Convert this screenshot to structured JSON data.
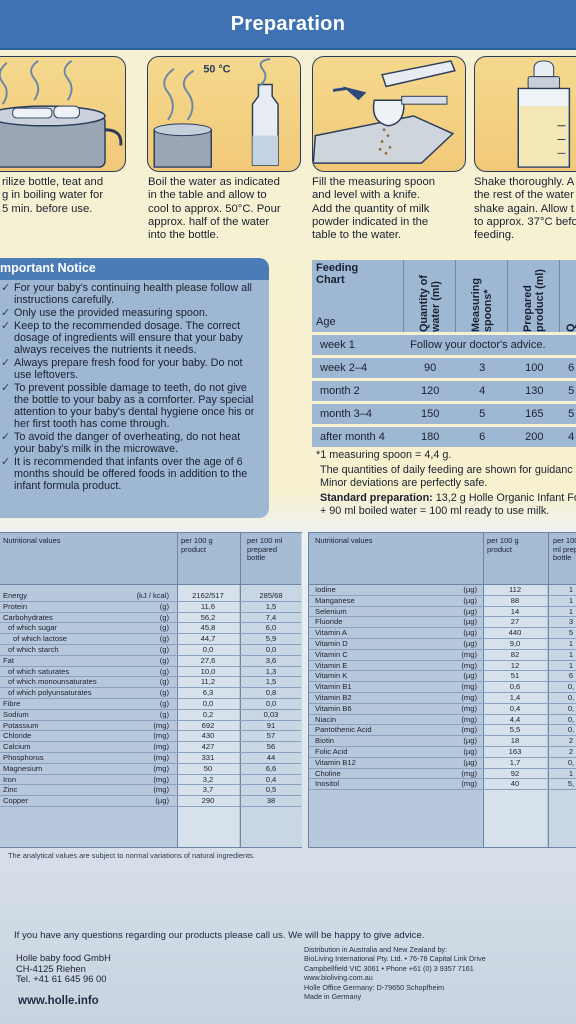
{
  "header": {
    "title": "Preparation"
  },
  "steps": [
    {
      "lines": [
        "rilize bottle, teat and",
        "g in boiling water for",
        "5 min. before use."
      ]
    },
    {
      "temp": "50 °C",
      "lines": [
        "Boil the water as indicated",
        "in the table and allow to",
        "cool to approx. 50°C. Pour",
        "approx. half of the water",
        "into the bottle."
      ]
    },
    {
      "lines": [
        "Fill the measuring spoon",
        "and level with a knife.",
        "Add the quantity of milk",
        "powder indicated in the",
        "table to the water."
      ]
    },
    {
      "lines": [
        "Shake thoroughly. A",
        "the rest of the water",
        "shake again. Allow t",
        "to approx. 37°C befo",
        "feeding."
      ]
    }
  ],
  "notice": {
    "title": "mportant Notice",
    "items": [
      "For your baby's continuing health please follow all instructions carefully.",
      "Only use the provided measuring spoon.",
      "Keep to the recommended dosage. The correct dosage of ingredients will ensure that your baby always receives the nutrients it needs.",
      "Always prepare fresh food for your baby. Do not use leftovers.",
      "To prevent possible damage to teeth, do not give the bottle to your baby as a comforter. Pay special attention to your baby's dental hygiene once his or her first tooth has come through.",
      "To avoid the danger of overheating, do not heat your baby's milk in the microwave.",
      "It is recommended that infants over the age of 6 months should be offered foods in addition to the infant formula product."
    ]
  },
  "feeding_chart": {
    "title_line1": "Feeding",
    "title_line2": "Chart",
    "age_label": "Age",
    "col_water": "Quantity of water (ml)",
    "col_spoons": "Measuring spoons*",
    "col_product": "Prepared product (ml)",
    "col_extra": "Q",
    "rows": [
      {
        "age": "week 1",
        "advice": "Follow your doctor's advice."
      },
      {
        "age": "week 2–4",
        "water": "90",
        "spoons": "3",
        "product": "100",
        "extra": "6"
      },
      {
        "age": "month 2",
        "water": "120",
        "spoons": "4",
        "product": "130",
        "extra": "5"
      },
      {
        "age": "month 3–4",
        "water": "150",
        "spoons": "5",
        "product": "165",
        "extra": "5"
      },
      {
        "age": "after month 4",
        "water": "180",
        "spoons": "6",
        "product": "200",
        "extra": "4"
      }
    ],
    "spoon_note": "*1 measuring spoon = 4,4 g.",
    "quantities_note_1": "The quantities of daily feeding are shown for guidanc",
    "quantities_note_2": "Minor deviations are perfectly safe.",
    "standard_label": "Standard preparation:",
    "standard_text_1": " 13,2 g Holle Organic Infant For",
    "standard_text_2": "+ 90 ml boiled water = 100 ml ready to use milk."
  },
  "nutrition_left": {
    "header_label": "Nutritional values",
    "col1": "per 100 g product",
    "col2": "per 100 ml prepared bottle",
    "rows": [
      {
        "name": "Energy",
        "unit": "(kJ / kcal)",
        "v1": "2162/517",
        "v2": "285/68"
      },
      {
        "name": "Protein",
        "unit": "(g)",
        "v1": "11,6",
        "v2": "1,5"
      },
      {
        "name": "Carbohydrates",
        "unit": "(g)",
        "v1": "56,2",
        "v2": "7,4"
      },
      {
        "name": "of which sugar",
        "unit": "(g)",
        "v1": "45,8",
        "v2": "6,0",
        "indent": 1
      },
      {
        "name": "of which lactose",
        "unit": "(g)",
        "v1": "44,7",
        "v2": "5,9",
        "indent": 2
      },
      {
        "name": "of which starch",
        "unit": "(g)",
        "v1": "0,0",
        "v2": "0,0",
        "indent": 1
      },
      {
        "name": "Fat",
        "unit": "(g)",
        "v1": "27,6",
        "v2": "3,6"
      },
      {
        "name": "of which saturates",
        "unit": "(g)",
        "v1": "10,0",
        "v2": "1,3",
        "indent": 1
      },
      {
        "name": "of which monounsaturates",
        "unit": "(g)",
        "v1": "11,2",
        "v2": "1,5",
        "indent": 1
      },
      {
        "name": "of which polyunsaturates",
        "unit": "(g)",
        "v1": "6,3",
        "v2": "0,8",
        "indent": 1
      },
      {
        "name": "Fibre",
        "unit": "(g)",
        "v1": "0,0",
        "v2": "0,0"
      },
      {
        "name": "Sodium",
        "unit": "(g)",
        "v1": "0,2",
        "v2": "0,03"
      },
      {
        "name": "Potassium",
        "unit": "(mg)",
        "v1": "692",
        "v2": "91"
      },
      {
        "name": "Chloride",
        "unit": "(mg)",
        "v1": "430",
        "v2": "57"
      },
      {
        "name": "Calcium",
        "unit": "(mg)",
        "v1": "427",
        "v2": "56"
      },
      {
        "name": "Phosphorus",
        "unit": "(mg)",
        "v1": "331",
        "v2": "44"
      },
      {
        "name": "Magnesium",
        "unit": "(mg)",
        "v1": "50",
        "v2": "6,6"
      },
      {
        "name": "Iron",
        "unit": "(mg)",
        "v1": "3,2",
        "v2": "0,4"
      },
      {
        "name": "Zinc",
        "unit": "(mg)",
        "v1": "3,7",
        "v2": "0,5"
      },
      {
        "name": "Copper",
        "unit": "(µg)",
        "v1": "290",
        "v2": "38"
      }
    ]
  },
  "nutrition_right": {
    "header_label": "Nutritional values",
    "col1": "per 100 g product",
    "col2": "per 100 ml prepa bottle",
    "rows": [
      {
        "name": "Iodine",
        "unit": "(µg)",
        "v1": "112",
        "v2": "1"
      },
      {
        "name": "Manganese",
        "unit": "(µg)",
        "v1": "88",
        "v2": "1"
      },
      {
        "name": "Selenium",
        "unit": "(µg)",
        "v1": "14",
        "v2": "1"
      },
      {
        "name": "Fluoride",
        "unit": "(µg)",
        "v1": "27",
        "v2": "3"
      },
      {
        "name": "Vitamin A",
        "unit": "(µg)",
        "v1": "440",
        "v2": "5"
      },
      {
        "name": "Vitamin D",
        "unit": "(µg)",
        "v1": "9,0",
        "v2": "1"
      },
      {
        "name": "Vitamin C",
        "unit": "(mg)",
        "v1": "82",
        "v2": "1"
      },
      {
        "name": "Vitamin E",
        "unit": "(mg)",
        "v1": "12",
        "v2": "1"
      },
      {
        "name": "Vitamin K",
        "unit": "(µg)",
        "v1": "51",
        "v2": "6"
      },
      {
        "name": "Vitamin B1",
        "unit": "(mg)",
        "v1": "0,6",
        "v2": "0,"
      },
      {
        "name": "Vitamin B2",
        "unit": "(mg)",
        "v1": "1,4",
        "v2": "0,"
      },
      {
        "name": "Vitamin B6",
        "unit": "(mg)",
        "v1": "0,4",
        "v2": "0,"
      },
      {
        "name": "Niacin",
        "unit": "(mg)",
        "v1": "4,4",
        "v2": "0,"
      },
      {
        "name": "Pantothenic Acid",
        "unit": "(mg)",
        "v1": "5,5",
        "v2": "0,"
      },
      {
        "name": "Biotin",
        "unit": "(µg)",
        "v1": "18",
        "v2": "2"
      },
      {
        "name": "Folic Acid",
        "unit": "(µg)",
        "v1": "163",
        "v2": "2"
      },
      {
        "name": "Vitamin B12",
        "unit": "(µg)",
        "v1": "1,7",
        "v2": "0,"
      },
      {
        "name": "Choline",
        "unit": "(mg)",
        "v1": "92",
        "v2": "1"
      },
      {
        "name": "Inositol",
        "unit": "(mg)",
        "v1": "40",
        "v2": "5,"
      }
    ]
  },
  "nutrition_footnote": "The analytical values are subject to normal variations of natural ingredients.",
  "footer": {
    "questions": "If you have any questions regarding our products please call us. We will be happy to give advice.",
    "address": [
      "Holle baby food GmbH",
      "CH-4125 Riehen",
      "Tel. +41 61 645 96 00"
    ],
    "distribution": [
      "Distribution in Australia and New Zealand by:",
      "BioLiving International Pty. Ltd. • 76-78 Capital Link Drive",
      "Campbellfield VIC 3061 • Phone +61 (0) 3 9357 7161",
      "www.bioliving.com.au",
      "Holle Office Germany: D-79650 Schopfheim",
      "Made in Germany"
    ],
    "website": "www.holle.info"
  }
}
